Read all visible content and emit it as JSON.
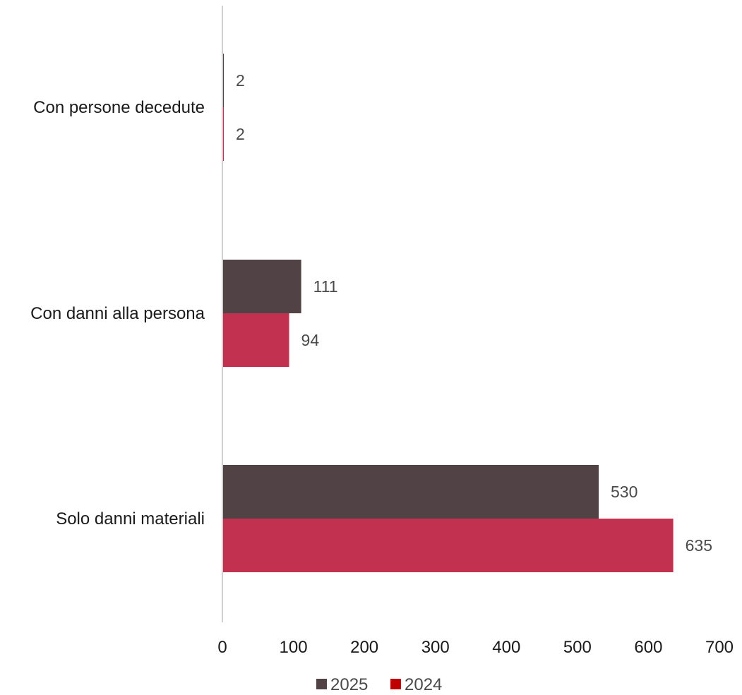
{
  "chart_data": {
    "type": "bar",
    "orientation": "horizontal",
    "categories": [
      "Con persone decedute",
      "Con danni alla persona",
      "Solo danni materiali"
    ],
    "series": [
      {
        "name": "2025",
        "values": [
          2,
          111,
          530
        ],
        "color": "#514245"
      },
      {
        "name": "2024",
        "values": [
          2,
          94,
          635
        ],
        "color": "#c23250"
      }
    ],
    "xlim": [
      0,
      700
    ],
    "xticks": [
      0,
      100,
      200,
      300,
      400,
      500,
      600,
      700
    ],
    "grid": false,
    "legend_position": "bottom",
    "legend_swatch_color_2024": "#c00000",
    "axis_line_color": "#d0d0d0"
  }
}
